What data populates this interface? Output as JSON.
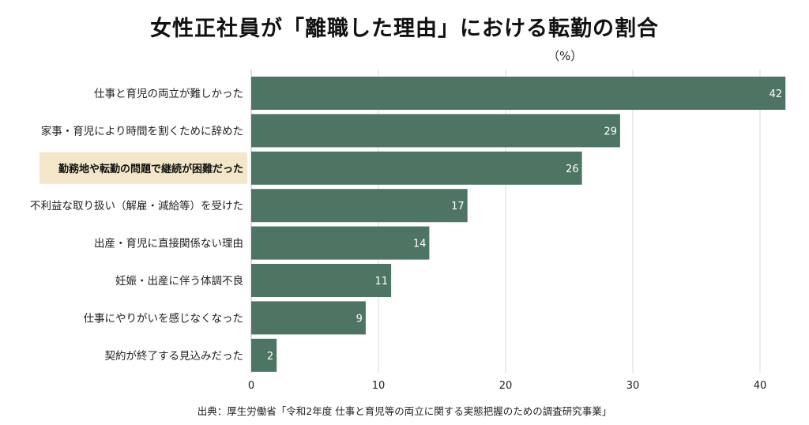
{
  "title": "女性正社員が「離職した理由」における転勤の割合",
  "unit_label": "（%）",
  "source": "出典：厚生労働省「令和2年度 仕事と育児等の両立に関する実態把握のための調査研究事業」",
  "colors": {
    "bar": "#4e7563",
    "highlight_bg": "#f4e6c8",
    "grid": "#d9d9d9"
  },
  "chart_data": {
    "type": "bar",
    "orientation": "horizontal",
    "title": "女性正社員が「離職した理由」における転勤の割合",
    "xlabel": "（%）",
    "ylabel": "",
    "xlim": [
      0,
      42
    ],
    "xticks": [
      0,
      10,
      20,
      30,
      40
    ],
    "grid": true,
    "highlight_category": "勤務地や転勤の問題で継続が困難だった",
    "categories": [
      "仕事と育児の両立が難しかった",
      "家事・育児により時間を割くために辞めた",
      "勤務地や転勤の問題で継続が困難だった",
      "不利益な取り扱い（解雇・減給等）を受けた",
      "出産・育児に直接関係ない理由",
      "妊娠・出産に伴う体調不良",
      "仕事にやりがいを感じなくなった",
      "契約が終了する見込みだった"
    ],
    "values": [
      42,
      29,
      26,
      17,
      14,
      11,
      9,
      2
    ]
  }
}
